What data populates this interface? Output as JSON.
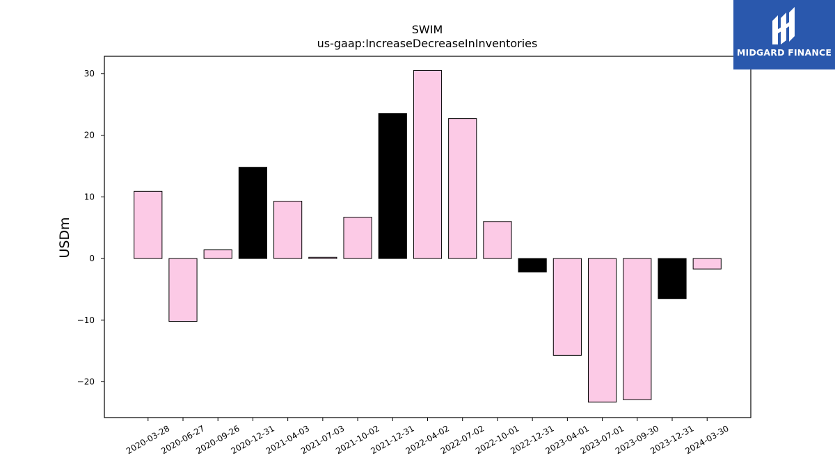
{
  "chart_data": {
    "type": "bar",
    "title": "SWIM",
    "subtitle": "us-gaap:IncreaseDecreaseInInventories",
    "xlabel": "",
    "ylabel": "USDm",
    "ylim": [
      -25.8,
      32.8
    ],
    "yticks": [
      -20,
      -10,
      0,
      10,
      20,
      30
    ],
    "grid": false,
    "categories": [
      "2020-03-28",
      "2020-06-27",
      "2020-09-26",
      "2020-12-31",
      "2021-04-03",
      "2021-07-03",
      "2021-10-02",
      "2021-12-31",
      "2022-04-02",
      "2022-07-02",
      "2022-10-01",
      "2022-12-31",
      "2023-04-01",
      "2023-07-01",
      "2023-09-30",
      "2023-12-31",
      "2024-03-30"
    ],
    "values": [
      10.9,
      -10.2,
      1.4,
      14.8,
      9.3,
      0.2,
      6.7,
      23.5,
      30.5,
      22.7,
      6.0,
      -2.2,
      -15.7,
      -23.3,
      -22.9,
      -6.5,
      -1.7
    ],
    "bar_colors": [
      "#fccae6",
      "#fccae6",
      "#fccae6",
      "#000000",
      "#fccae6",
      "#fccae6",
      "#fccae6",
      "#000000",
      "#fccae6",
      "#fccae6",
      "#fccae6",
      "#000000",
      "#fccae6",
      "#fccae6",
      "#fccae6",
      "#000000",
      "#fccae6"
    ]
  },
  "logo": {
    "text": "MIDGARD FINANCE",
    "color": "#2a58ad"
  }
}
